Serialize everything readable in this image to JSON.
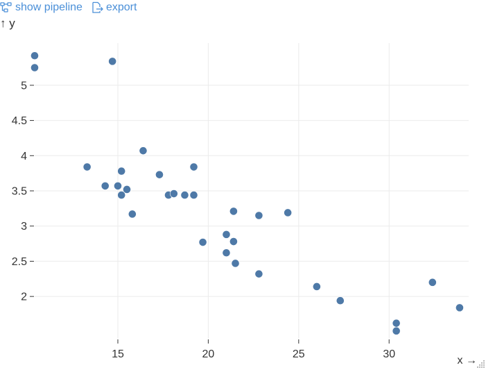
{
  "toolbar": {
    "pipeline_label": "show pipeline",
    "export_label": "export",
    "accent_color": "#4a8fd8"
  },
  "chart_data": {
    "type": "scatter",
    "xlabel": "x →",
    "ylabel": "↑ y",
    "x_ticks": [
      15,
      20,
      25,
      30
    ],
    "y_ticks": [
      2,
      2.5,
      3,
      3.5,
      4,
      4.5,
      5
    ],
    "xlim": [
      10.4,
      34.4
    ],
    "ylim": [
      1.4,
      5.6
    ],
    "grid": true,
    "point_color": "#4e79a7",
    "points": [
      {
        "x": 10.4,
        "y": 5.42
      },
      {
        "x": 10.4,
        "y": 5.25
      },
      {
        "x": 14.7,
        "y": 5.34
      },
      {
        "x": 13.3,
        "y": 3.84
      },
      {
        "x": 14.3,
        "y": 3.57
      },
      {
        "x": 15.0,
        "y": 3.57
      },
      {
        "x": 15.2,
        "y": 3.78
      },
      {
        "x": 15.2,
        "y": 3.44
      },
      {
        "x": 15.5,
        "y": 3.52
      },
      {
        "x": 15.8,
        "y": 3.17
      },
      {
        "x": 16.4,
        "y": 4.07
      },
      {
        "x": 17.3,
        "y": 3.73
      },
      {
        "x": 17.8,
        "y": 3.44
      },
      {
        "x": 18.1,
        "y": 3.46
      },
      {
        "x": 18.7,
        "y": 3.44
      },
      {
        "x": 19.2,
        "y": 3.44
      },
      {
        "x": 19.2,
        "y": 3.84
      },
      {
        "x": 19.7,
        "y": 2.77
      },
      {
        "x": 21.0,
        "y": 2.88
      },
      {
        "x": 21.0,
        "y": 2.62
      },
      {
        "x": 21.4,
        "y": 3.21
      },
      {
        "x": 21.4,
        "y": 2.78
      },
      {
        "x": 21.5,
        "y": 2.47
      },
      {
        "x": 22.8,
        "y": 3.15
      },
      {
        "x": 22.8,
        "y": 2.32
      },
      {
        "x": 24.4,
        "y": 3.19
      },
      {
        "x": 26.0,
        "y": 2.14
      },
      {
        "x": 27.3,
        "y": 1.94
      },
      {
        "x": 30.4,
        "y": 1.62
      },
      {
        "x": 30.4,
        "y": 1.51
      },
      {
        "x": 32.4,
        "y": 2.2
      },
      {
        "x": 33.9,
        "y": 1.84
      }
    ]
  }
}
